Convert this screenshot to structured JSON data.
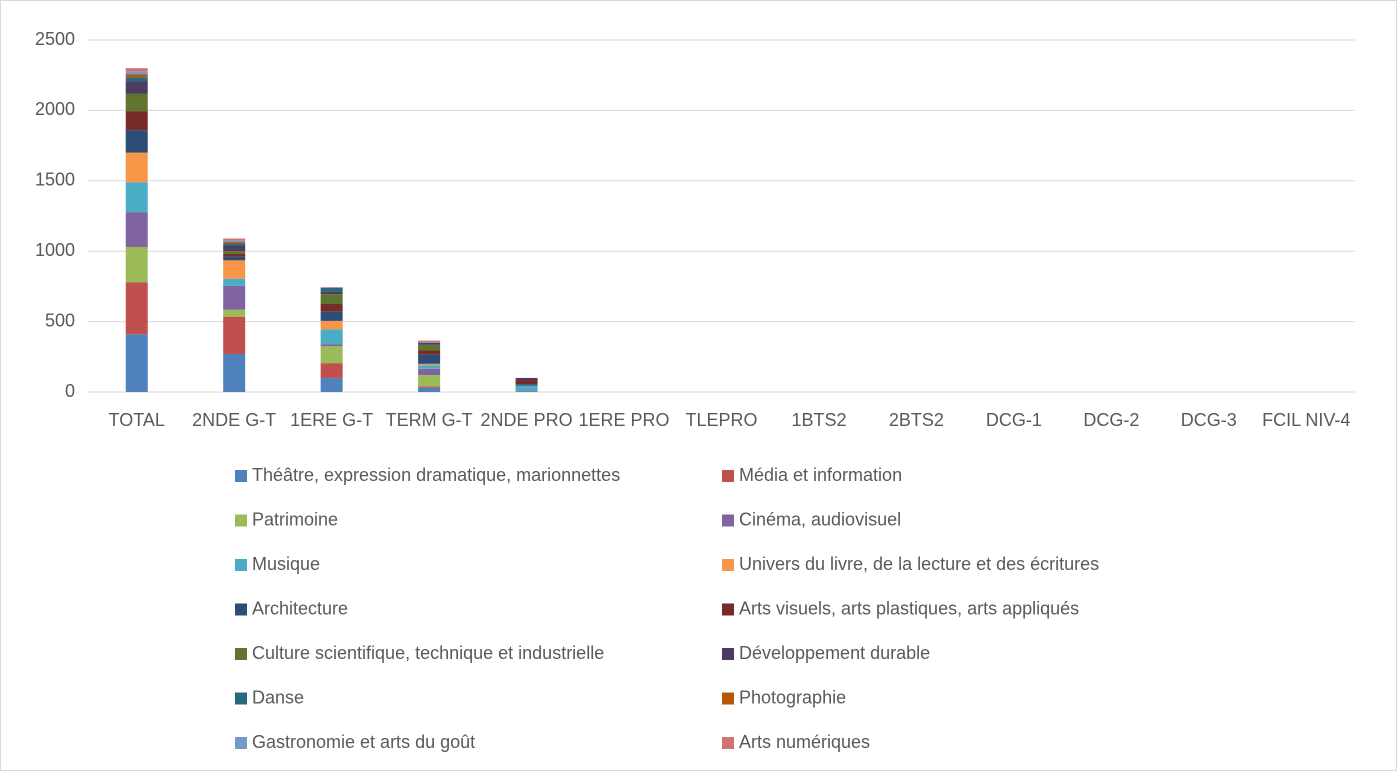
{
  "chart_data": {
    "type": "bar",
    "stacked": true,
    "categories": [
      "TOTAL",
      "2NDE G-T",
      "1ERE G-T",
      "TERM G-T",
      "2NDE PRO",
      "1ERE PRO",
      "TLEPRO",
      "1BTS2",
      "2BTS2",
      "DCG-1",
      "DCG-2",
      "DCG-3",
      "FCIL NIV-4"
    ],
    "series": [
      {
        "name": "Théâtre, expression dramatique, marionnettes",
        "color": "#4f81bd",
        "values": [
          410,
          270,
          100,
          30,
          5,
          0,
          0,
          0,
          0,
          0,
          0,
          0,
          0
        ]
      },
      {
        "name": "Média et information",
        "color": "#c0504d",
        "values": [
          370,
          265,
          105,
          10,
          0,
          0,
          0,
          0,
          0,
          0,
          0,
          0,
          0
        ]
      },
      {
        "name": "Patrimoine",
        "color": "#9bbb59",
        "values": [
          250,
          50,
          120,
          80,
          0,
          0,
          0,
          0,
          0,
          0,
          0,
          0,
          0
        ]
      },
      {
        "name": "Cinéma, audiovisuel",
        "color": "#8064a2",
        "values": [
          245,
          170,
          15,
          45,
          5,
          0,
          0,
          0,
          0,
          0,
          0,
          0,
          0
        ]
      },
      {
        "name": "Musique",
        "color": "#4bacc6",
        "values": [
          215,
          50,
          105,
          25,
          35,
          0,
          0,
          0,
          0,
          0,
          0,
          0,
          0
        ]
      },
      {
        "name": "Univers du livre, de la lecture et des écritures",
        "color": "#f79646",
        "values": [
          210,
          130,
          60,
          10,
          0,
          0,
          0,
          0,
          0,
          0,
          0,
          0,
          0
        ]
      },
      {
        "name": "Architecture",
        "color": "#2c4d75",
        "values": [
          160,
          25,
          65,
          65,
          10,
          0,
          0,
          0,
          0,
          0,
          0,
          0,
          0
        ]
      },
      {
        "name": "Arts visuels, arts plastiques, arts appliqués",
        "color": "#772c2a",
        "values": [
          135,
          20,
          55,
          30,
          30,
          0,
          0,
          0,
          0,
          0,
          0,
          0,
          0
        ]
      },
      {
        "name": "Culture scientifique, technique et industrielle",
        "color": "#5f7530",
        "values": [
          125,
          20,
          70,
          40,
          0,
          0,
          0,
          0,
          0,
          0,
          0,
          0,
          0
        ]
      },
      {
        "name": "Développement durable",
        "color": "#4d3b62",
        "values": [
          85,
          40,
          20,
          15,
          15,
          0,
          0,
          0,
          0,
          0,
          0,
          0,
          0
        ]
      },
      {
        "name": "Danse",
        "color": "#276a7c",
        "values": [
          30,
          15,
          25,
          0,
          0,
          0,
          0,
          0,
          0,
          0,
          0,
          0,
          0
        ]
      },
      {
        "name": "Photographie",
        "color": "#b65708",
        "values": [
          20,
          10,
          0,
          0,
          0,
          0,
          0,
          0,
          0,
          0,
          0,
          0,
          0
        ]
      },
      {
        "name": "Gastronomie et arts du goût",
        "color": "#729aca",
        "values": [
          20,
          10,
          0,
          5,
          0,
          0,
          0,
          0,
          0,
          0,
          0,
          0,
          0
        ]
      },
      {
        "name": "Arts numériques",
        "color": "#cd7371",
        "values": [
          25,
          15,
          5,
          10,
          0,
          0,
          0,
          0,
          0,
          0,
          0,
          0,
          0
        ]
      }
    ],
    "ylim": [
      0,
      2500
    ],
    "yticks": [
      0,
      500,
      1000,
      1500,
      2000,
      2500
    ],
    "grid": true,
    "legend": "bottom"
  }
}
